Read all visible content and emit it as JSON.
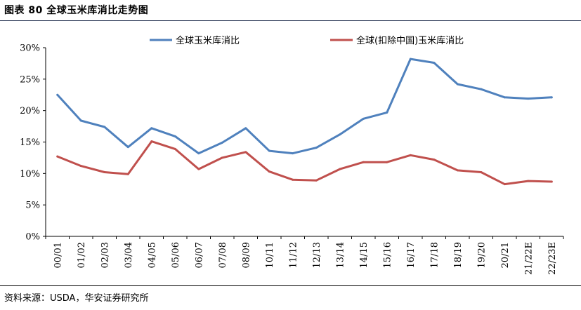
{
  "figure": {
    "title": "图表 80 全球玉米库消比走势图",
    "source": "资料来源：USDA，华安证券研究所"
  },
  "chart_data": {
    "type": "line",
    "categories": [
      "00/01",
      "01/02",
      "02/03",
      "03/04",
      "04/05",
      "05/06",
      "06/07",
      "07/08",
      "08/09",
      "10/11",
      "11/12",
      "12/13",
      "13/14",
      "14/15",
      "15/16",
      "16/17",
      "17/18",
      "18/19",
      "19/20",
      "20/21",
      "21/22E",
      "22/23E"
    ],
    "series": [
      {
        "name": "全球玉米库消比",
        "color": "#4f81bd",
        "values": [
          22.5,
          18.4,
          17.4,
          14.2,
          17.2,
          15.9,
          13.2,
          14.9,
          17.2,
          13.6,
          13.2,
          14.1,
          16.2,
          18.7,
          19.7,
          28.2,
          27.6,
          24.2,
          23.4,
          22.1,
          21.9,
          22.1
        ]
      },
      {
        "name": "全球(扣除中国)玉米库消比",
        "color": "#c0504d",
        "values": [
          12.7,
          11.2,
          10.2,
          9.9,
          15.1,
          13.9,
          10.7,
          12.5,
          13.4,
          10.3,
          9.0,
          8.9,
          10.7,
          11.8,
          11.8,
          12.9,
          12.2,
          10.5,
          10.2,
          8.3,
          8.8,
          8.7
        ]
      }
    ],
    "yticks": [
      "0%",
      "5%",
      "10%",
      "15%",
      "20%",
      "25%",
      "30%"
    ],
    "ylim": [
      0,
      30
    ],
    "grid": false,
    "legend": "top"
  }
}
